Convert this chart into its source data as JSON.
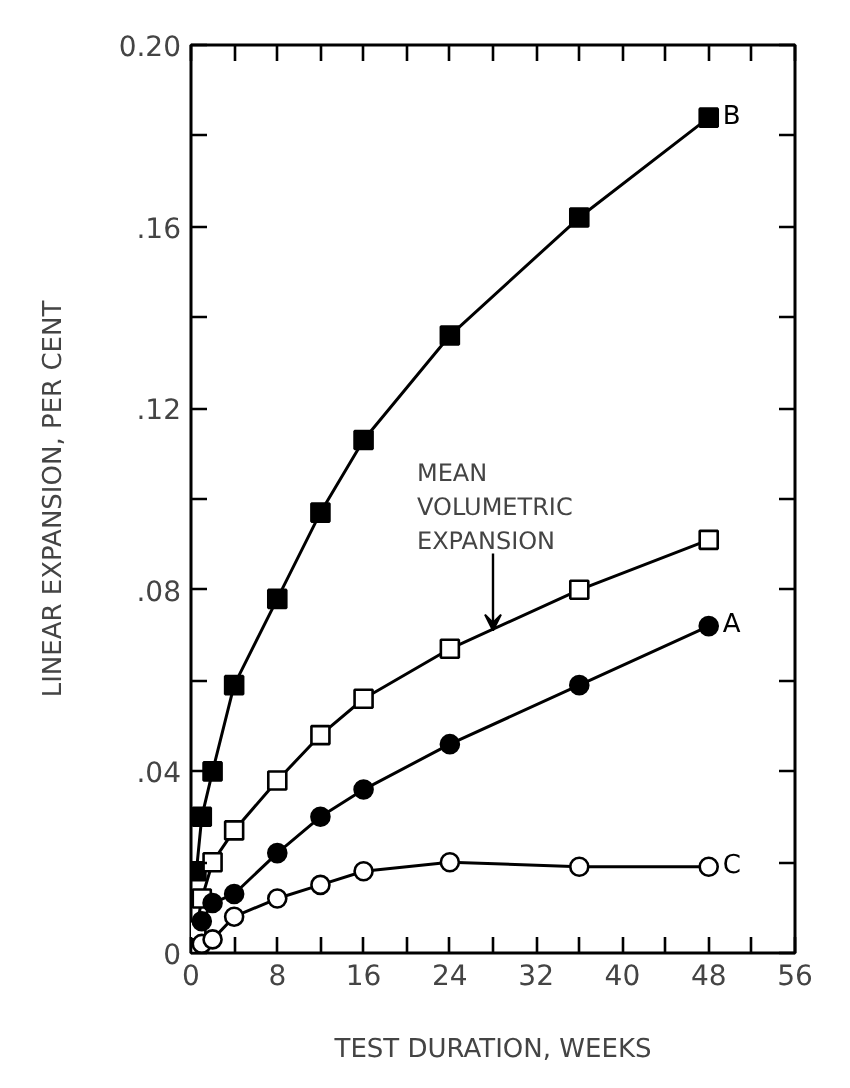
{
  "chart_data": {
    "type": "line",
    "xlabel": "TEST DURATION, WEEKS",
    "ylabel": "LINEAR EXPANSION, PER CENT",
    "x": [
      0.5,
      1,
      2,
      4,
      8,
      12,
      16,
      24,
      36,
      48
    ],
    "series": [
      {
        "name": "B",
        "color": "#000000",
        "marker": "square",
        "values": [
          0.018,
          0.03,
          0.04,
          0.059,
          0.078,
          0.097,
          0.113,
          0.136,
          0.162,
          0.184
        ]
      },
      {
        "color": "#000000",
        "marker": "square_open",
        "values": [
          0.005,
          0.012,
          0.02,
          0.027,
          0.038,
          0.048,
          0.056,
          0.067,
          0.08,
          0.091
        ]
      },
      {
        "name": "A",
        "color": "#000000",
        "marker": "circle",
        "values": [
          null,
          0.007,
          0.011,
          0.013,
          0.022,
          0.03,
          0.036,
          0.046,
          0.059,
          0.072
        ]
      },
      {
        "name": "C",
        "color": "#000000",
        "marker": "circle_open",
        "values": [
          0.001,
          0.002,
          0.003,
          0.008,
          0.012,
          0.015,
          0.018,
          0.02,
          0.019,
          0.019
        ]
      }
    ],
    "annotations": [
      {
        "text": "MEAN\nVOLUMETRIC\nEXPANSION",
        "x": 28,
        "y": 0.071
      }
    ],
    "xlim": [
      0,
      56
    ],
    "ylim": [
      0,
      0.2
    ],
    "xticks": [
      0,
      {
        "value": 4,
        "label": null
      },
      8,
      {
        "value": 12,
        "label": null
      },
      16,
      {
        "value": 20,
        "label": null
      },
      24,
      {
        "value": 28,
        "label": null
      },
      32,
      {
        "value": 36,
        "label": null
      },
      40,
      {
        "value": 44,
        "label": null
      },
      48,
      {
        "value": 52,
        "label": null
      },
      56
    ],
    "yticks": [
      0,
      {
        "value": 0.02,
        "label": null
      },
      {
        "value": 0.04,
        "label": ".04"
      },
      {
        "value": 0.06,
        "label": null
      },
      {
        "value": 0.08,
        "label": ".08"
      },
      {
        "value": 0.1,
        "label": null
      },
      {
        "value": 0.12,
        "label": ".12"
      },
      {
        "value": 0.14,
        "label": null
      },
      {
        "value": 0.16,
        "label": ".16"
      },
      {
        "value": 0.18,
        "label": null
      },
      {
        "value": 0.2,
        "label": "0.20"
      }
    ],
    "grid": false
  }
}
